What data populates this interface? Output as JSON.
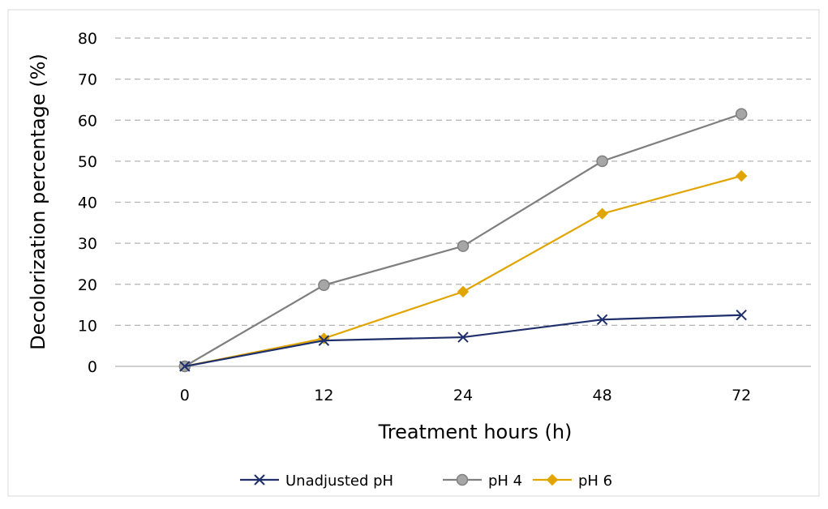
{
  "chart_data": {
    "type": "line",
    "title": "",
    "xlabel": "Treatment hours (h)",
    "ylabel": "Decolorization percentage (%)",
    "categories": [
      "0",
      "12",
      "24",
      "48",
      "72"
    ],
    "ylim": [
      0,
      80
    ],
    "yticks": [
      "0",
      "10",
      "20",
      "30",
      "40",
      "50",
      "60",
      "70",
      "80"
    ],
    "grid": "horizontal dashed",
    "legend_position": "bottom",
    "series": [
      {
        "name": "Unadjusted pH",
        "values": [
          0,
          6.3,
          7.1,
          11.4,
          12.5
        ],
        "color": "#1f2f6b",
        "marker": "x"
      },
      {
        "name": "pH 4",
        "values": [
          0,
          19.8,
          29.3,
          50.0,
          61.5
        ],
        "color": "#7f7f7f",
        "marker": "circle"
      },
      {
        "name": "pH 6",
        "values": [
          0,
          6.8,
          18.2,
          37.2,
          46.4
        ],
        "color": "#e0a500",
        "marker": "diamond"
      }
    ]
  }
}
